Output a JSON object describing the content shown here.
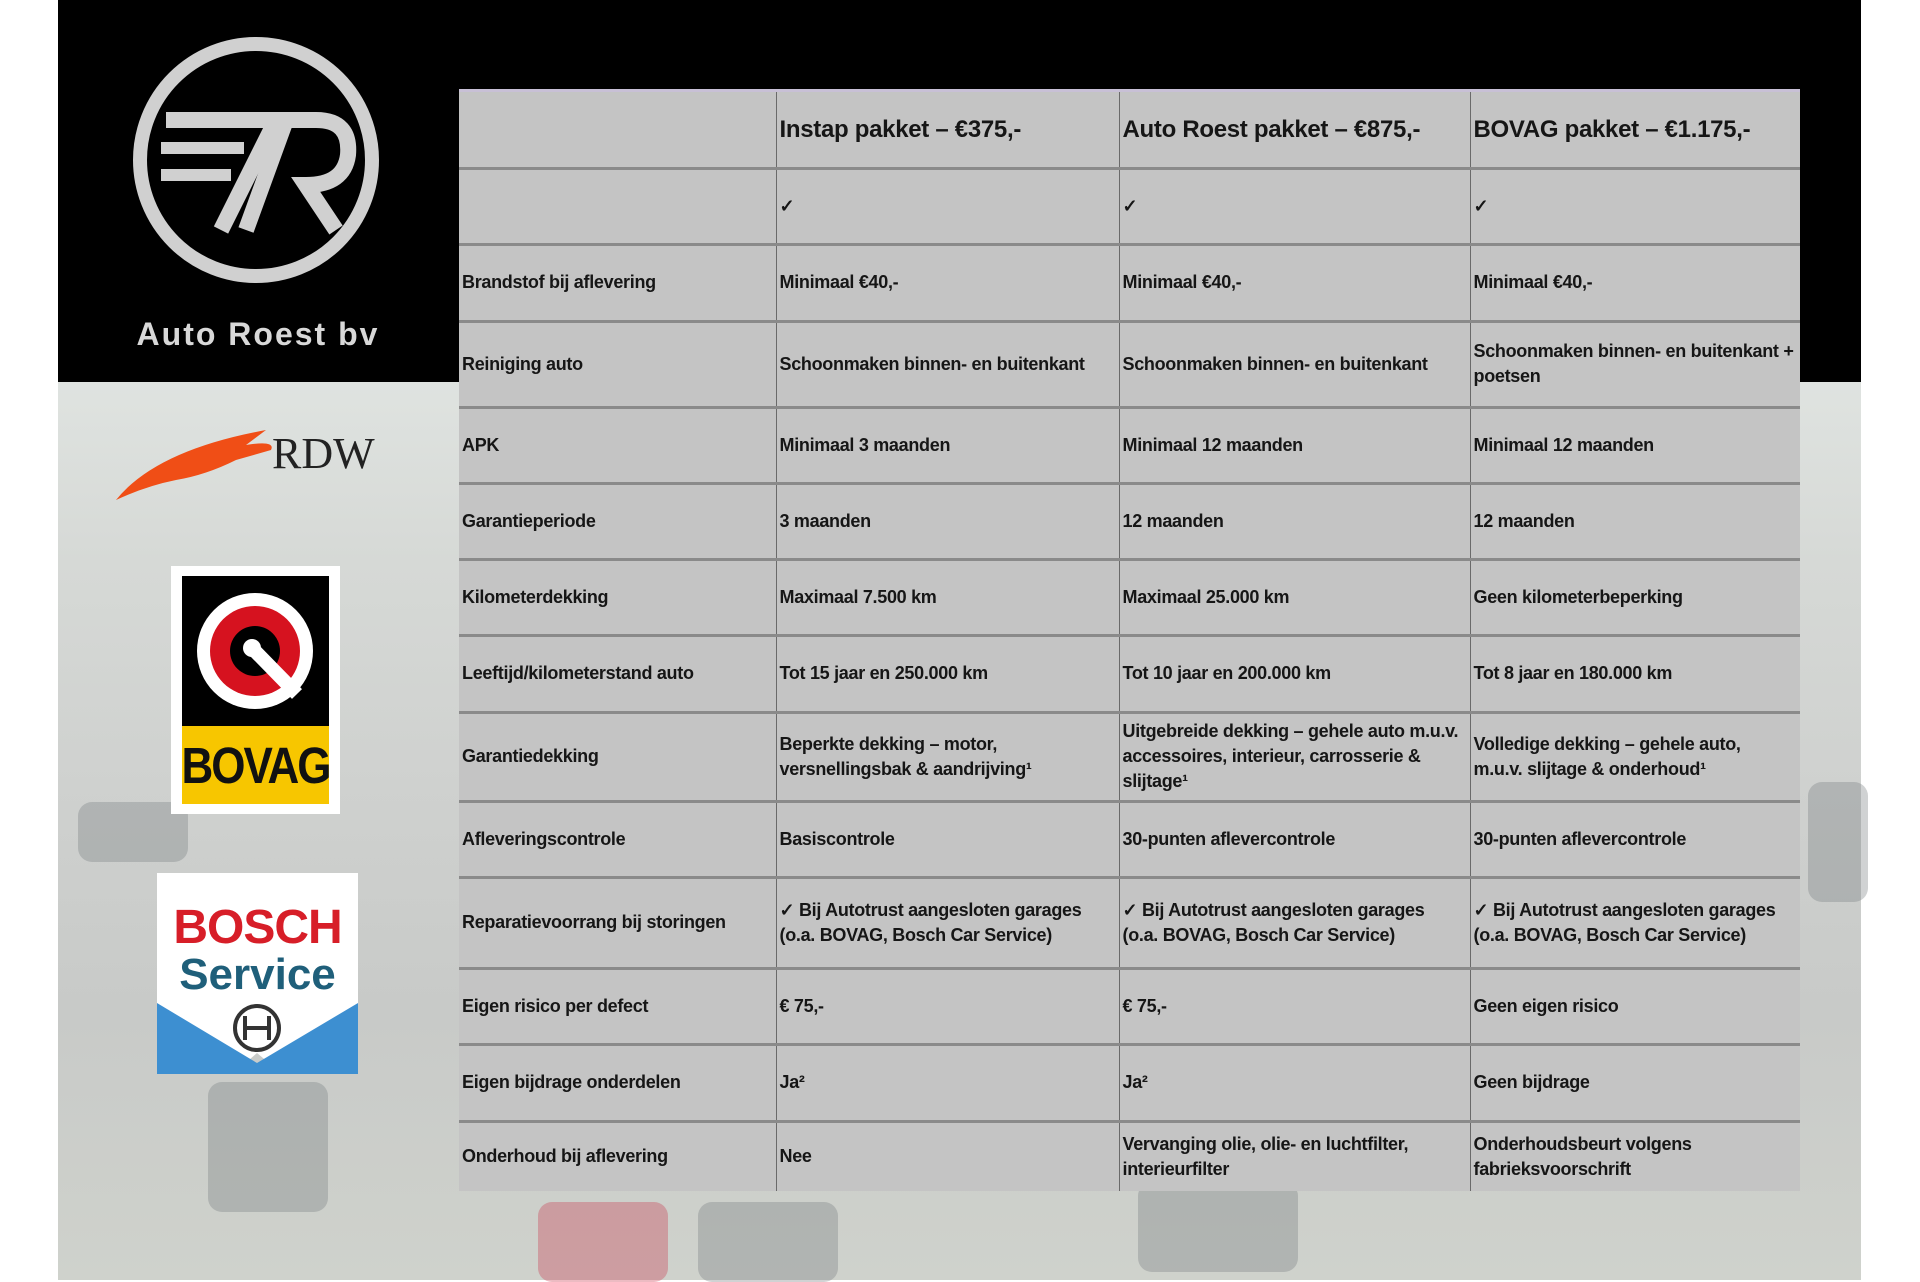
{
  "brand": {
    "name": "Auto Roest bv",
    "logo_text": "7R"
  },
  "logos": {
    "rdw": "RDW",
    "bovag": "BOVAG",
    "bosch_line1": "BOSCH",
    "bosch_line2": "Service"
  },
  "colors": {
    "table_bg": "#c4c4c4",
    "header_bg": "#000000",
    "rdw_orange": "#f04e16",
    "bovag_yellow": "#f7c600",
    "bovag_red": "#d6121f",
    "bosch_red": "#d71e28",
    "bosch_blue": "#3d8fd1"
  },
  "table": {
    "columns": [
      "",
      "Instap pakket – €375,-",
      "Auto Roest pakket – €875,-",
      "BOVAG pakket – €1.175,-"
    ],
    "rows": [
      [
        "",
        "✓",
        "✓",
        "✓"
      ],
      [
        "Brandstof bij aflevering",
        "Minimaal €40,-",
        "Minimaal €40,-",
        "Minimaal €40,-"
      ],
      [
        "Reiniging auto",
        "Schoonmaken binnen- en buitenkant",
        "Schoonmaken binnen- en buitenkant",
        "Schoonmaken binnen- en buitenkant + poetsen"
      ],
      [
        "APK",
        "Minimaal 3 maanden",
        "Minimaal 12 maanden",
        "Minimaal 12 maanden"
      ],
      [
        "Garantieperiode",
        "3 maanden",
        "12 maanden",
        "12 maanden"
      ],
      [
        "Kilometerdekking",
        "Maximaal 7.500 km",
        "Maximaal 25.000 km",
        "Geen kilometerbeperking"
      ],
      [
        "Leeftijd/kilometerstand auto",
        "Tot 15 jaar en 250.000 km",
        "Tot 10 jaar en 200.000 km",
        "Tot 8 jaar en 180.000 km"
      ],
      [
        "Garantiedekking",
        "Beperkte dekking – motor, versnellingsbak & aandrijving¹",
        "Uitgebreide dekking – gehele auto m.u.v. accessoires, interieur, carrosserie & slijtage¹",
        "Volledige dekking – gehele auto, m.u.v. slijtage & onderhoud¹"
      ],
      [
        "Afleveringscontrole",
        "Basiscontrole",
        "30-punten aflevercontrole",
        "30-punten aflevercontrole"
      ],
      [
        "Reparatievoorrang bij storingen",
        "✓ Bij Autotrust aangesloten garages (o.a. BOVAG, Bosch Car Service)",
        "✓ Bij Autotrust aangesloten garages (o.a. BOVAG, Bosch Car Service)",
        "✓ Bij Autotrust aangesloten garages (o.a. BOVAG, Bosch Car Service)"
      ],
      [
        "Eigen risico per defect",
        "€ 75,-",
        "€ 75,-",
        "Geen eigen risico"
      ],
      [
        "Eigen bijdrage onderdelen",
        "Ja²",
        "Ja²",
        "Geen bijdrage"
      ],
      [
        "Onderhoud bij aflevering",
        "Nee",
        "Vervanging olie, olie- en luchtfilter, interieurfilter",
        "Onderhoudsbeurt volgens fabrieksvoorschrift"
      ]
    ]
  }
}
